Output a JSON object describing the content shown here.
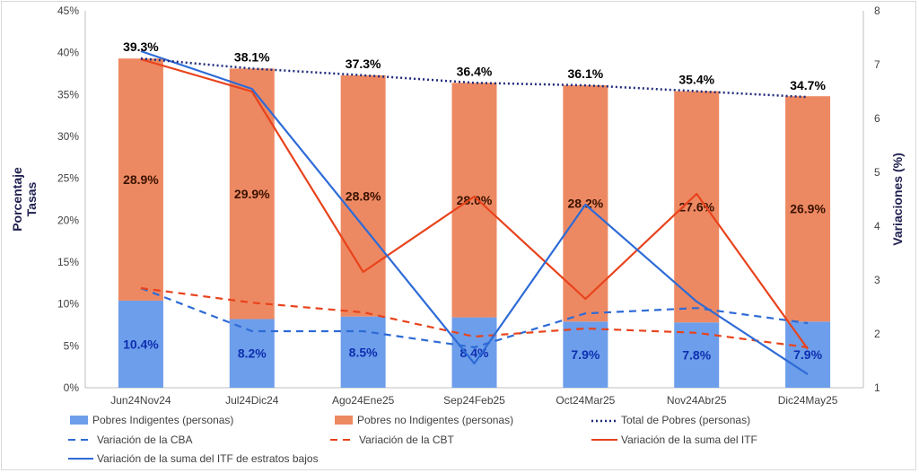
{
  "chart_data": {
    "type": "bar",
    "categories": [
      "Jun24Nov24",
      "Jul24Dic24",
      "Ago24Ene25",
      "Sep24Feb25",
      "Oct24Mar25",
      "Nov24Abr25",
      "Dic24May25"
    ],
    "y_left": {
      "label_line1": "Porcentaje",
      "label_line2": "Tasas",
      "lim": [
        0,
        45
      ],
      "ticks": [
        "0%",
        "5%",
        "10%",
        "15%",
        "20%",
        "25%",
        "30%",
        "35%",
        "40%",
        "45%"
      ]
    },
    "y_right": {
      "label": "Variaciones (%)",
      "lim": [
        1,
        8
      ],
      "ticks": [
        "1",
        "2",
        "3",
        "4",
        "5",
        "6",
        "7",
        "8"
      ]
    },
    "bars": [
      {
        "name": "Pobres Indigentes (personas)",
        "color": "#6d9eeb",
        "values": [
          10.4,
          8.2,
          8.5,
          8.4,
          7.9,
          7.8,
          7.9
        ],
        "labels": [
          "10.4%",
          "8.2%",
          "8.5%",
          "8.4%",
          "7.9%",
          "7.8%",
          "7.9%"
        ]
      },
      {
        "name": "Pobres no Indigentes (personas)",
        "color": "#ed8962",
        "values": [
          28.9,
          29.9,
          28.8,
          28.0,
          28.2,
          27.6,
          26.9
        ],
        "labels": [
          "28.9%",
          "29.9%",
          "28.8%",
          "28.0%",
          "28.2%",
          "27.6%",
          "26.9%"
        ]
      }
    ],
    "total": {
      "name": "Total de Pobres (personas)",
      "color": "#1f2a7a",
      "values": [
        39.3,
        38.1,
        37.3,
        36.4,
        36.1,
        35.4,
        34.7
      ],
      "labels": [
        "39.3%",
        "38.1%",
        "37.3%",
        "36.4%",
        "36.1%",
        "35.4%",
        "34.7%"
      ]
    },
    "lines": [
      {
        "name": "Variación de la CBA",
        "color": "#2e6bd6",
        "dash": "8,6",
        "axis": "right",
        "values": [
          2.85,
          2.05,
          2.05,
          1.75,
          2.38,
          2.48,
          2.2
        ]
      },
      {
        "name": "Variación de la CBT",
        "color": "#e8431c",
        "dash": "8,6",
        "axis": "right",
        "values": [
          2.85,
          2.58,
          2.4,
          1.95,
          2.1,
          2.02,
          1.75
        ]
      },
      {
        "name": "Variación de la suma del ITF",
        "color": "#e8431c",
        "dash": "",
        "axis": "right",
        "values": [
          7.1,
          6.5,
          3.15,
          4.55,
          2.65,
          4.6,
          1.72
        ]
      },
      {
        "name": "Variación de la suma del ITF de estratos bajos",
        "color": "#2e6bd6",
        "dash": "",
        "axis": "right",
        "values": [
          7.25,
          6.55,
          4.0,
          1.45,
          4.4,
          2.6,
          1.25
        ]
      }
    ],
    "legend_position": "bottom",
    "grid": false
  }
}
